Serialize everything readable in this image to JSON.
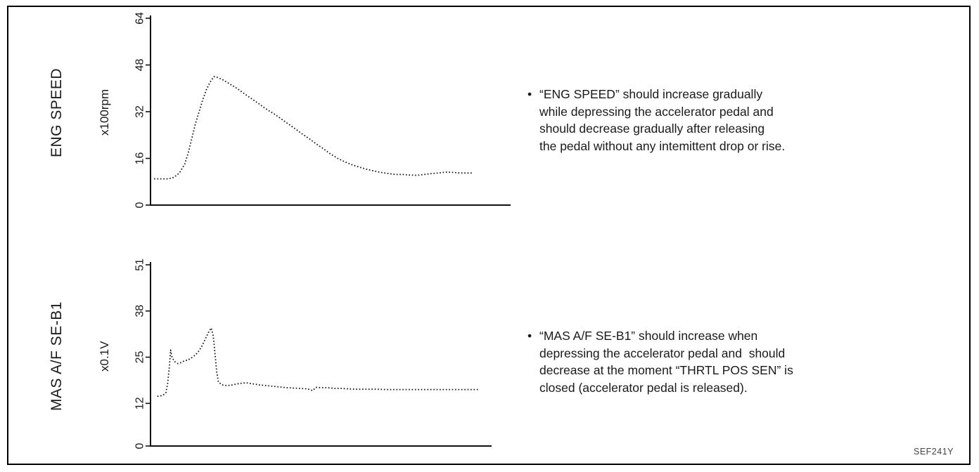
{
  "figure": {
    "ref_code": "SEF241Y"
  },
  "chart_data": [
    {
      "type": "line",
      "title": "ENG SPEED",
      "ylabel": "x100rpm",
      "xlabel": "",
      "ylim": [
        0,
        64
      ],
      "xlim": [
        0,
        100
      ],
      "yticks": [
        0,
        16,
        32,
        48,
        64
      ],
      "grid": false,
      "legend": "none",
      "line_style": "dotted",
      "series": [
        {
          "name": "ENG SPEED (x100rpm)",
          "points": [
            [
              1,
              9
            ],
            [
              3,
              9
            ],
            [
              5,
              9
            ],
            [
              6.5,
              9.5
            ],
            [
              8,
              11
            ],
            [
              9.5,
              14
            ],
            [
              10.5,
              18
            ],
            [
              11.5,
              23
            ],
            [
              12.5,
              28
            ],
            [
              13.5,
              32
            ],
            [
              14.5,
              36
            ],
            [
              15.5,
              39.5
            ],
            [
              16.5,
              42
            ],
            [
              17.6,
              44
            ],
            [
              18.5,
              43.8
            ],
            [
              20,
              43
            ],
            [
              22,
              41.5
            ],
            [
              24,
              40
            ],
            [
              26,
              38.2
            ],
            [
              28,
              36.5
            ],
            [
              30,
              34.8
            ],
            [
              32,
              33
            ],
            [
              34,
              31.5
            ],
            [
              36,
              29.8
            ],
            [
              38,
              28
            ],
            [
              40,
              26.3
            ],
            [
              42,
              24.5
            ],
            [
              44,
              22.8
            ],
            [
              46,
              21
            ],
            [
              48,
              19.3
            ],
            [
              50,
              17.5
            ],
            [
              52,
              16
            ],
            [
              54,
              14.8
            ],
            [
              56,
              13.8
            ],
            [
              58,
              13
            ],
            [
              60,
              12.3
            ],
            [
              62,
              11.7
            ],
            [
              64,
              11.2
            ],
            [
              66,
              10.8
            ],
            [
              68,
              10.5
            ],
            [
              70,
              10.5
            ],
            [
              72,
              10.3
            ],
            [
              74,
              10.2
            ],
            [
              76,
              10.5
            ],
            [
              78,
              10.8
            ],
            [
              80,
              11
            ],
            [
              82,
              11.3
            ],
            [
              84,
              11.2
            ],
            [
              86,
              11
            ],
            [
              88,
              11
            ],
            [
              89.5,
              11
            ]
          ]
        }
      ]
    },
    {
      "type": "line",
      "title": "MAS A/F SE-B1",
      "ylabel": "x0.1V",
      "xlabel": "",
      "ylim": [
        0,
        51
      ],
      "xlim": [
        0,
        100
      ],
      "yticks": [
        0,
        12,
        25,
        38,
        51
      ],
      "grid": false,
      "legend": "none",
      "line_style": "dotted",
      "series": [
        {
          "name": "MAS A/F SE-B1 (x0.1V)",
          "points": [
            [
              2,
              14
            ],
            [
              3.5,
              14.2
            ],
            [
              4.5,
              15
            ],
            [
              5,
              17.5
            ],
            [
              5.5,
              22
            ],
            [
              5.9,
              27
            ],
            [
              6.3,
              25
            ],
            [
              7,
              23.8
            ],
            [
              8,
              23.2
            ],
            [
              9,
              23.5
            ],
            [
              10,
              24
            ],
            [
              11,
              24.2
            ],
            [
              12,
              24.8
            ],
            [
              13,
              25.5
            ],
            [
              14,
              26.5
            ],
            [
              15,
              28
            ],
            [
              16,
              30
            ],
            [
              17,
              32
            ],
            [
              17.8,
              33.2
            ],
            [
              18.4,
              31
            ],
            [
              18.9,
              26
            ],
            [
              19.4,
              21
            ],
            [
              19.9,
              18
            ],
            [
              21,
              17.2
            ],
            [
              22.5,
              17
            ],
            [
              24,
              17.2
            ],
            [
              26,
              17.6
            ],
            [
              28,
              17.8
            ],
            [
              30,
              17.5
            ],
            [
              32,
              17.2
            ],
            [
              34,
              17
            ],
            [
              36,
              16.8
            ],
            [
              38,
              16.6
            ],
            [
              40,
              16.4
            ],
            [
              42,
              16.3
            ],
            [
              44,
              16.2
            ],
            [
              46,
              16.1
            ],
            [
              47.5,
              15.6
            ],
            [
              48.5,
              16.5
            ],
            [
              50,
              16.4
            ],
            [
              52,
              16.4
            ],
            [
              54,
              16.2
            ],
            [
              56,
              16.2
            ],
            [
              58,
              16.1
            ],
            [
              60,
              16
            ],
            [
              63,
              16
            ],
            [
              66,
              16
            ],
            [
              69,
              15.9
            ],
            [
              72,
              15.9
            ],
            [
              75,
              15.9
            ],
            [
              78,
              15.9
            ],
            [
              81,
              15.9
            ],
            [
              84,
              15.9
            ],
            [
              87,
              15.9
            ],
            [
              90,
              15.9
            ],
            [
              93,
              15.9
            ],
            [
              96,
              15.9
            ]
          ]
        }
      ]
    }
  ],
  "annotations": [
    {
      "bullet": "•",
      "text": "“ENG SPEED” should increase gradually\nwhile depressing the accelerator pedal and\nshould decrease gradually after releasing\nthe pedal without any intemittent drop or rise."
    },
    {
      "bullet": "•",
      "text": "“MAS A/F SE-B1” should increase when\ndepressing the accelerator pedal and  should\ndecrease at the moment “THRTL POS SEN” is\nclosed (accelerator pedal is released)."
    }
  ]
}
